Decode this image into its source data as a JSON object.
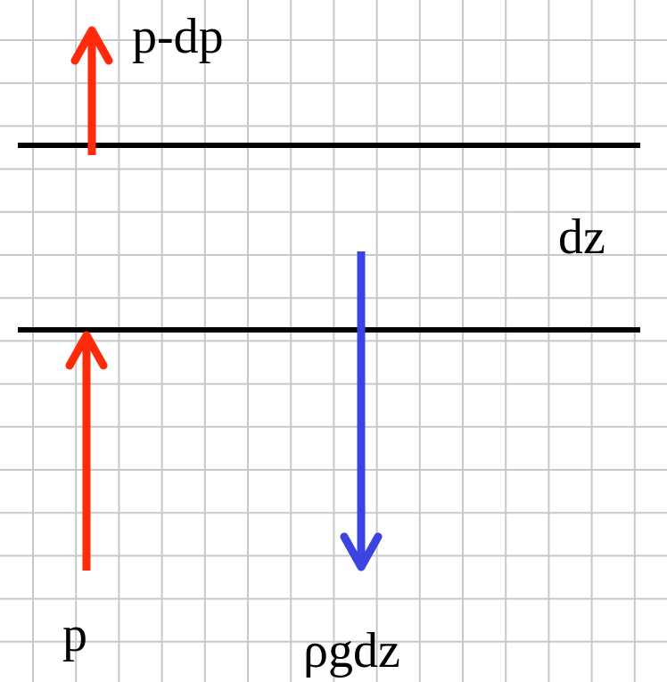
{
  "labels": {
    "pressure_top": "p-dp",
    "thickness": "dz",
    "pressure_bottom": "p",
    "weight": "ρgdz"
  },
  "colors": {
    "grid": "#c8c8c8",
    "layer_lines": "#000000",
    "pressure_arrows": "#ff2a0a",
    "weight_arrow": "#3b44e0"
  }
}
